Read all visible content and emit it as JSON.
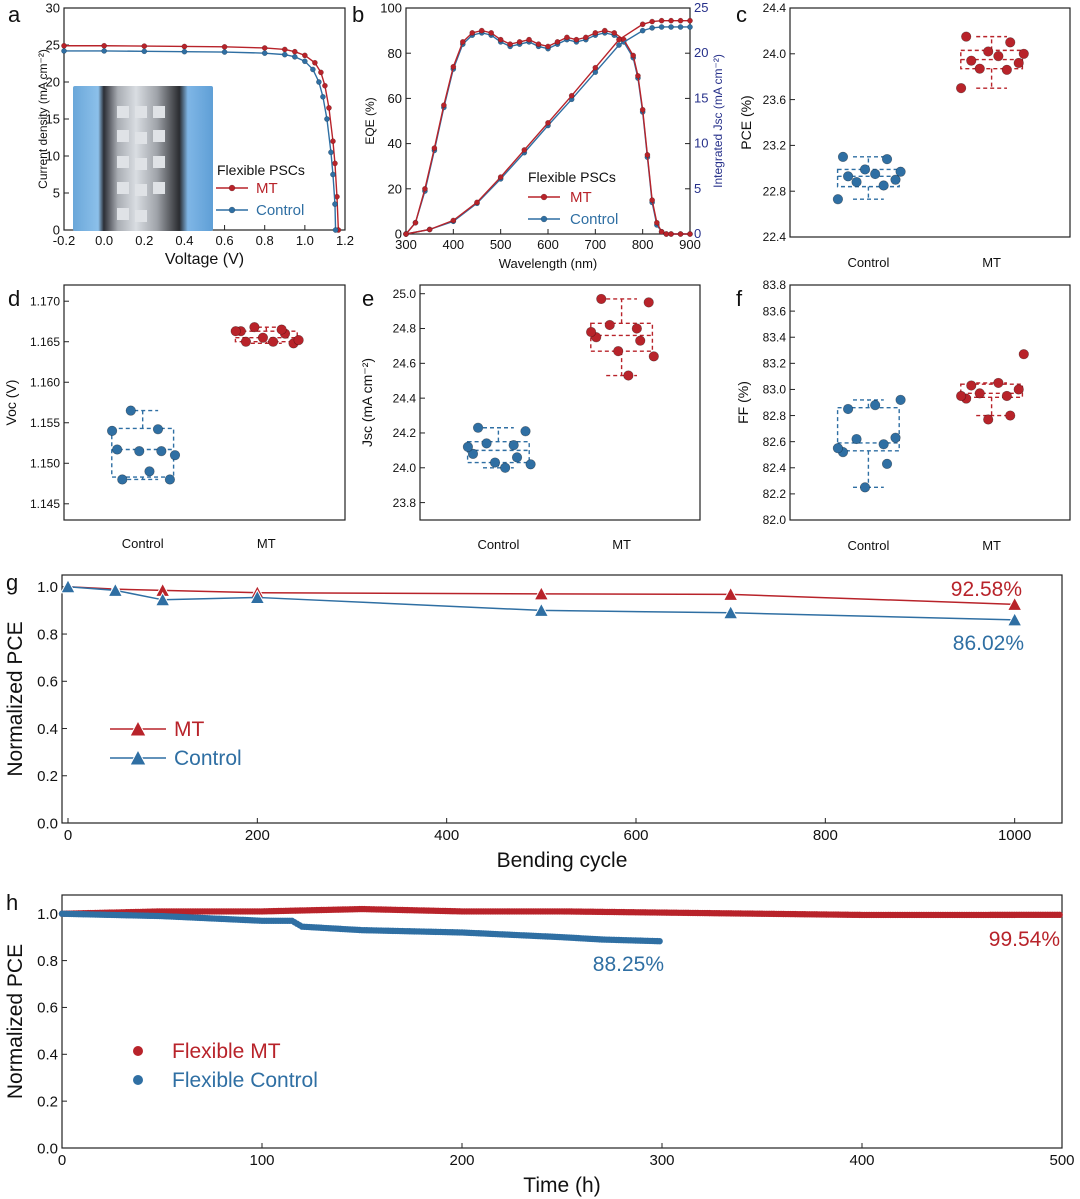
{
  "chart_data": [
    {
      "id": "a",
      "type": "line",
      "panel_label": "a",
      "xlabel": "Voltage (V)",
      "ylabel": "Current density (mA cm⁻²)",
      "xlim": [
        -0.2,
        1.2
      ],
      "ylim": [
        0,
        30
      ],
      "xticks": [
        -0.2,
        0.0,
        0.2,
        0.4,
        0.6,
        0.8,
        1.0,
        1.2
      ],
      "yticks": [
        0,
        5,
        10,
        15,
        20,
        25,
        30
      ],
      "legend_title": "Flexible PSCs",
      "colors": {
        "MT": "#b8232a",
        "Control": "#2f6fa3"
      },
      "series": [
        {
          "name": "MT",
          "x": [
            -0.2,
            0,
            0.2,
            0.4,
            0.6,
            0.8,
            0.9,
            0.95,
            1.0,
            1.05,
            1.08,
            1.1,
            1.12,
            1.14,
            1.15,
            1.16,
            1.167
          ],
          "y": [
            24.9,
            24.9,
            24.85,
            24.8,
            24.75,
            24.6,
            24.4,
            24.1,
            23.6,
            22.6,
            21.3,
            19.5,
            16.5,
            12.0,
            9.0,
            4.5,
            0
          ]
        },
        {
          "name": "Control",
          "x": [
            -0.2,
            0,
            0.2,
            0.4,
            0.6,
            0.8,
            0.9,
            0.95,
            1.0,
            1.04,
            1.07,
            1.09,
            1.11,
            1.13,
            1.14,
            1.15,
            1.153
          ],
          "y": [
            24.2,
            24.2,
            24.15,
            24.1,
            24.05,
            23.9,
            23.7,
            23.4,
            22.8,
            21.7,
            20.0,
            18.0,
            15.0,
            10.5,
            7.5,
            3.5,
            0
          ]
        }
      ]
    },
    {
      "id": "b",
      "type": "line",
      "panel_label": "b",
      "xlabel": "Wavelength (nm)",
      "ylabel": "EQE (%)",
      "y2label": "Integrated Jsc (mA cm⁻²)",
      "xlim": [
        300,
        900
      ],
      "ylim": [
        0,
        100
      ],
      "y2lim": [
        0,
        25
      ],
      "xticks": [
        300,
        400,
        500,
        600,
        700,
        800,
        900
      ],
      "yticks": [
        0,
        20,
        40,
        60,
        80,
        100
      ],
      "y2ticks": [
        0,
        5,
        10,
        15,
        20,
        25
      ],
      "legend_title": "Flexible PSCs",
      "eqe_x": [
        300,
        320,
        340,
        360,
        380,
        400,
        420,
        440,
        460,
        480,
        500,
        520,
        540,
        560,
        580,
        600,
        620,
        640,
        660,
        680,
        700,
        720,
        740,
        760,
        780,
        790,
        800,
        810,
        820,
        830,
        840,
        850,
        860,
        880,
        900
      ],
      "eqe_mt_y": [
        0,
        5,
        20,
        38,
        57,
        74,
        85,
        89,
        90,
        89,
        86,
        84,
        85,
        86,
        84,
        83,
        85,
        87,
        86,
        87,
        89,
        90,
        89,
        86,
        79,
        70,
        55,
        35,
        15,
        5,
        1,
        0,
        0,
        0,
        0
      ],
      "eqe_control_y": [
        0,
        5,
        19,
        37,
        56,
        73,
        84,
        88,
        89,
        88,
        85,
        83,
        84,
        85,
        83,
        82,
        84,
        86,
        85,
        86,
        88,
        89,
        88,
        85,
        78,
        69,
        54,
        34,
        14,
        4,
        1,
        0,
        0,
        0,
        0
      ],
      "jsc_x": [
        300,
        350,
        400,
        450,
        500,
        550,
        600,
        650,
        700,
        750,
        800,
        820,
        840,
        860,
        880,
        900
      ],
      "jsc_mt_y": [
        0,
        0.5,
        1.5,
        3.5,
        6.3,
        9.3,
        12.3,
        15.3,
        18.4,
        21.5,
        23.2,
        23.5,
        23.6,
        23.6,
        23.6,
        23.6
      ],
      "jsc_control_y": [
        0,
        0.5,
        1.4,
        3.4,
        6.1,
        9.0,
        12.0,
        14.9,
        17.9,
        20.9,
        22.5,
        22.8,
        22.9,
        22.9,
        22.9,
        22.9
      ],
      "colors": {
        "MT": "#b8232a",
        "Control": "#2f6fa3"
      },
      "legend": [
        "MT",
        "Control"
      ]
    },
    {
      "id": "c",
      "type": "box",
      "panel_label": "c",
      "ylabel": "PCE (%)",
      "ylim": [
        22.4,
        24.4
      ],
      "yticks": [
        22.4,
        22.8,
        23.2,
        23.6,
        24.0,
        24.4
      ],
      "categories": [
        "Control",
        "MT"
      ],
      "points": [
        [
          22.73,
          22.85,
          22.88,
          22.9,
          22.93,
          22.95,
          22.97,
          22.99,
          23.08,
          23.1
        ],
        [
          23.7,
          23.86,
          23.87,
          23.92,
          23.94,
          23.98,
          24.0,
          24.02,
          24.1,
          24.15
        ]
      ],
      "box": [
        {
          "min": 22.73,
          "q1": 22.84,
          "median": 22.93,
          "q3": 22.99,
          "max": 23.1
        },
        {
          "min": 23.7,
          "q1": 23.87,
          "median": 23.95,
          "q3": 24.03,
          "max": 24.15
        }
      ]
    },
    {
      "id": "d",
      "type": "box",
      "panel_label": "d",
      "ylabel": "Voc (V)",
      "ylim": [
        1.143,
        1.172
      ],
      "yticks": [
        1.145,
        1.15,
        1.155,
        1.16,
        1.165,
        1.17
      ],
      "categories": [
        "Control",
        "MT"
      ],
      "points": [
        [
          1.148,
          1.148,
          1.149,
          1.151,
          1.1515,
          1.1515,
          1.1517,
          1.154,
          1.1542,
          1.1565
        ],
        [
          1.1648,
          1.165,
          1.165,
          1.1652,
          1.1655,
          1.166,
          1.1663,
          1.1663,
          1.1665,
          1.1668
        ]
      ],
      "box": [
        {
          "min": 1.148,
          "q1": 1.1483,
          "median": 1.1517,
          "q3": 1.1543,
          "max": 1.1565
        },
        {
          "min": 1.1648,
          "q1": 1.165,
          "median": 1.1655,
          "q3": 1.1663,
          "max": 1.1668
        }
      ]
    },
    {
      "id": "e",
      "type": "box",
      "panel_label": "e",
      "ylabel": "Jsc (mA cm⁻²)",
      "ylim": [
        23.7,
        25.05
      ],
      "yticks": [
        23.8,
        24.0,
        24.2,
        24.4,
        24.6,
        24.8,
        25.0
      ],
      "categories": [
        "Control",
        "MT"
      ],
      "points": [
        [
          24.0,
          24.02,
          24.03,
          24.06,
          24.08,
          24.12,
          24.13,
          24.14,
          24.21,
          24.23
        ],
        [
          24.53,
          24.64,
          24.67,
          24.73,
          24.75,
          24.78,
          24.8,
          24.82,
          24.95,
          24.97
        ]
      ],
      "box": [
        {
          "min": 24.0,
          "q1": 24.03,
          "median": 24.1,
          "q3": 24.15,
          "max": 24.23
        },
        {
          "min": 24.53,
          "q1": 24.67,
          "median": 24.76,
          "q3": 24.83,
          "max": 24.97
        }
      ]
    },
    {
      "id": "f",
      "type": "box",
      "panel_label": "f",
      "ylabel": "FF (%)",
      "ylim": [
        82.0,
        83.8
      ],
      "yticks": [
        82.0,
        82.2,
        82.4,
        82.6,
        82.8,
        83.0,
        83.2,
        83.4,
        83.6,
        83.8
      ],
      "categories": [
        "Control",
        "MT"
      ],
      "points": [
        [
          82.25,
          82.43,
          82.52,
          82.55,
          82.58,
          82.62,
          82.63,
          82.85,
          82.88,
          82.92
        ],
        [
          82.77,
          82.8,
          82.93,
          82.95,
          82.95,
          82.97,
          83.0,
          83.03,
          83.05,
          83.27
        ]
      ],
      "box": [
        {
          "min": 82.25,
          "q1": 82.53,
          "median": 82.59,
          "q3": 82.86,
          "max": 82.92
        },
        {
          "min": 82.8,
          "q1": 82.94,
          "median": 82.97,
          "q3": 83.04,
          "max": 83.05
        }
      ]
    },
    {
      "id": "g",
      "type": "line",
      "panel_label": "g",
      "xlabel": "Bending cycle",
      "ylabel": "Normalized PCE",
      "xlim": [
        0,
        1050
      ],
      "ylim": [
        0,
        1.05
      ],
      "xticks": [
        0,
        200,
        400,
        600,
        800,
        1000
      ],
      "yticks": [
        0.0,
        0.2,
        0.4,
        0.6,
        0.8,
        1.0
      ],
      "series": [
        {
          "name": "MT",
          "x": [
            0,
            50,
            100,
            200,
            500,
            700,
            1000
          ],
          "y": [
            1.0,
            0.99,
            0.985,
            0.975,
            0.97,
            0.968,
            0.9258
          ]
        },
        {
          "name": "Control",
          "x": [
            0,
            50,
            100,
            200,
            500,
            700,
            1000
          ],
          "y": [
            1.0,
            0.985,
            0.945,
            0.955,
            0.9,
            0.89,
            0.8602
          ]
        }
      ],
      "annotations": [
        "92.58%",
        "86.02%"
      ],
      "colors": {
        "MT": "#b8232a",
        "Control": "#2f6fa3"
      }
    },
    {
      "id": "h",
      "type": "scatter",
      "panel_label": "h",
      "xlabel": "Time (h)",
      "ylabel": "Normalized PCE",
      "xlim": [
        0,
        500
      ],
      "ylim": [
        0,
        1.08
      ],
      "xticks": [
        0,
        100,
        200,
        300,
        400,
        500
      ],
      "yticks": [
        0.0,
        0.2,
        0.4,
        0.6,
        0.8,
        1.0
      ],
      "series": [
        {
          "name": "Flexible MT",
          "x": [
            0,
            50,
            100,
            150,
            200,
            250,
            300,
            350,
            400,
            450,
            500
          ],
          "y": [
            1.0,
            1.01,
            1.01,
            1.02,
            1.01,
            1.01,
            1.005,
            1.0,
            0.995,
            0.995,
            0.9954
          ]
        },
        {
          "name": "Flexible Control",
          "x": [
            0,
            50,
            100,
            115,
            120,
            150,
            200,
            250,
            270,
            300
          ],
          "y": [
            1.0,
            0.99,
            0.97,
            0.97,
            0.945,
            0.93,
            0.92,
            0.9,
            0.89,
            0.8825
          ]
        }
      ],
      "annotations": [
        "99.54%",
        "88.25%"
      ],
      "colors": {
        "MT": "#b8232a",
        "Control": "#2f6fa3"
      }
    }
  ]
}
